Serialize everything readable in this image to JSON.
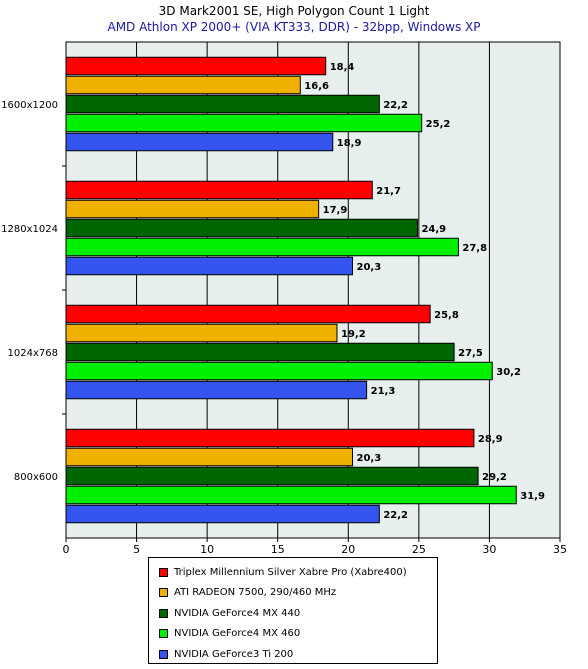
{
  "chart_data": {
    "type": "bar",
    "orientation": "horizontal",
    "title": "3D Mark2001 SE, High Polygon Count 1 Light",
    "subtitle": "AMD Athlon XP 2000+ (VIA KT333, DDR) - 32bpp, Windows XP",
    "categories": [
      "1600x1200",
      "1280x1024",
      "1024x768",
      "800x600"
    ],
    "xlim": [
      0,
      35
    ],
    "xticks": [
      0,
      5,
      10,
      15,
      20,
      25,
      30,
      35
    ],
    "grid": true,
    "legend_position": "bottom",
    "series": [
      {
        "name": "Triplex Millennium Silver Xabre Pro (Xabre400)",
        "color": "#ff0000",
        "values": [
          18.4,
          21.7,
          25.8,
          28.9
        ],
        "labels": [
          "18,4",
          "21,7",
          "25,8",
          "28,9"
        ]
      },
      {
        "name": "ATI RADEON 7500, 290/460 MHz",
        "color": "#f0b000",
        "values": [
          16.6,
          17.9,
          19.2,
          20.3
        ],
        "labels": [
          "16,6",
          "17,9",
          "19,2",
          "20,3"
        ]
      },
      {
        "name": "NVIDIA GeForce4 MX 440",
        "color": "#006600",
        "values": [
          22.2,
          24.9,
          27.5,
          29.2
        ],
        "labels": [
          "22,2",
          "24,9",
          "27,5",
          "29,2"
        ]
      },
      {
        "name": "NVIDIA GeForce4 MX 460",
        "color": "#00ee00",
        "values": [
          25.2,
          27.8,
          30.2,
          31.9
        ],
        "labels": [
          "25,2",
          "27,8",
          "30,2",
          "31,9"
        ]
      },
      {
        "name": "NVIDIA GeForce3 Ti 200",
        "color": "#3355ee",
        "values": [
          18.9,
          20.3,
          21.3,
          22.2
        ],
        "labels": [
          "18,9",
          "20,3",
          "21,3",
          "22,2"
        ]
      }
    ]
  }
}
